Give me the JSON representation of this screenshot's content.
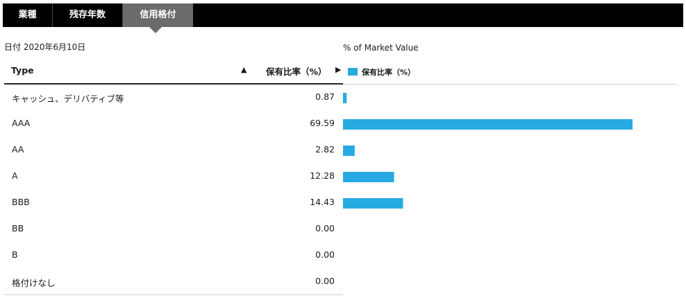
{
  "tabs": [
    {
      "label": "業種",
      "active": false
    },
    {
      "label": "残存年数",
      "active": false
    },
    {
      "label": "信用格付",
      "active": true
    }
  ],
  "date_label": "日付 2020年6月10日",
  "chart_caption": "% of Market Value",
  "table": {
    "header_type": "Type",
    "header_sort_icon": "▲",
    "header_value": "保有比率（%）",
    "header_arrow_icon": "▶"
  },
  "legend_label": "保有比率（%）",
  "accent_color": "#27aae1",
  "chart_data": {
    "type": "bar",
    "orientation": "horizontal",
    "categories": [
      "キャッシュ、デリバティブ等",
      "AAA",
      "AA",
      "A",
      "BBB",
      "BB",
      "B",
      "格付けなし"
    ],
    "values": [
      0.87,
      69.59,
      2.82,
      12.28,
      14.43,
      0.0,
      0.0,
      0.0
    ],
    "value_labels": [
      "0.87",
      "69.59",
      "2.82",
      "12.28",
      "14.43",
      "0.00",
      "0.00",
      "0.00"
    ],
    "series": [
      {
        "name": "保有比率（%）",
        "values": [
          0.87,
          69.59,
          2.82,
          12.28,
          14.43,
          0.0,
          0.0,
          0.0
        ]
      }
    ],
    "title": "% of Market Value",
    "xlabel": "",
    "ylabel": "",
    "grid": false,
    "legend_position": "top-left",
    "color": "#27aae1"
  }
}
